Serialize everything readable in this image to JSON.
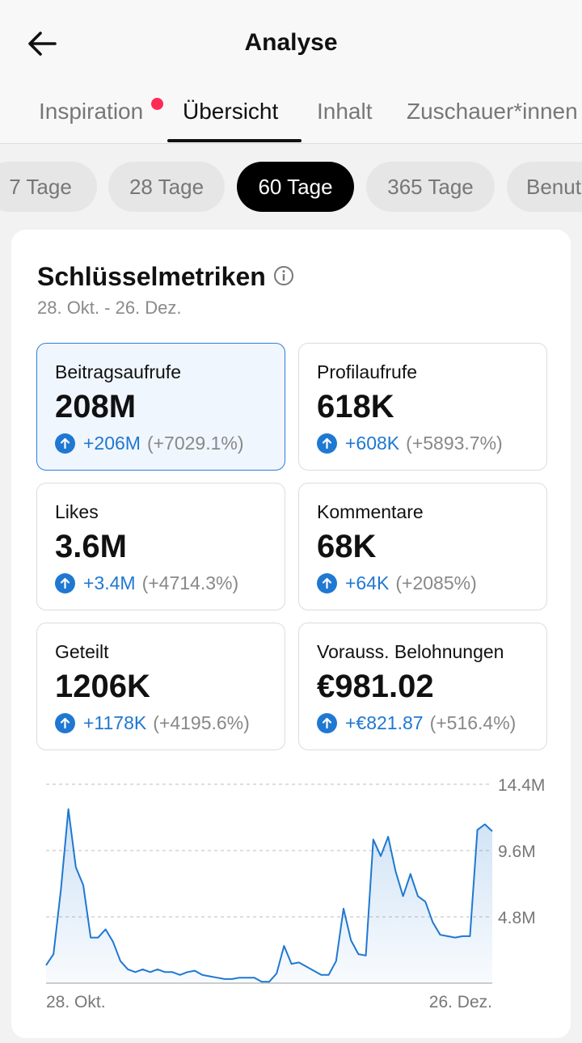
{
  "header": {
    "title": "Analyse"
  },
  "tabs": [
    {
      "label": "Inspiration",
      "has_notification_dot": true
    },
    {
      "label": "Übersicht",
      "active": true
    },
    {
      "label": "Inhalt"
    },
    {
      "label": "Zuschauer*innen"
    }
  ],
  "periods": [
    {
      "label": "7 Tage"
    },
    {
      "label": "28 Tage"
    },
    {
      "label": "60 Tage",
      "active": true
    },
    {
      "label": "365 Tage"
    },
    {
      "label": "Benutzerdefiniert"
    }
  ],
  "key_metrics": {
    "title": "Schlüsselmetriken",
    "date_range": "28. Okt. - 26. Dez.",
    "items": [
      {
        "label": "Beitragsaufrufe",
        "value": "208M",
        "delta": "+206M",
        "pct": "(+7029.1%)",
        "selected": true
      },
      {
        "label": "Profilaufrufe",
        "value": "618K",
        "delta": "+608K",
        "pct": "(+5893.7%)"
      },
      {
        "label": "Likes",
        "value": "3.6M",
        "delta": "+3.4M",
        "pct": "(+4714.3%)"
      },
      {
        "label": "Kommentare",
        "value": "68K",
        "delta": "+64K",
        "pct": "(+2085%)"
      },
      {
        "label": "Geteilt",
        "value": "1206K",
        "delta": "+1178K",
        "pct": "(+4195.6%)"
      },
      {
        "label": "Vorauss. Belohnungen",
        "value": "€981.02",
        "delta": "+€821.87",
        "pct": "(+516.4%)"
      }
    ]
  },
  "colors": {
    "accent": "#1f78d1",
    "active_chip": "#000000",
    "notification": "#fe2c55"
  },
  "chart_data": {
    "type": "area",
    "x_tick_labels": [
      "28. Okt.",
      "26. Dez."
    ],
    "y_tick_labels": [
      "14.4M",
      "9.6M",
      "4.8M"
    ],
    "ylim": [
      0,
      14.4
    ],
    "grid": true,
    "values": [
      1.3,
      2.1,
      6.8,
      12.6,
      8.4,
      7.1,
      3.3,
      3.3,
      3.9,
      3.0,
      1.6,
      1.0,
      0.8,
      1.0,
      0.8,
      1.0,
      0.8,
      0.8,
      0.6,
      0.8,
      0.9,
      0.6,
      0.5,
      0.4,
      0.3,
      0.3,
      0.4,
      0.4,
      0.4,
      0.1,
      0.1,
      0.7,
      2.7,
      1.4,
      1.5,
      1.2,
      0.9,
      0.6,
      0.6,
      1.6,
      5.4,
      3.1,
      2.1,
      2.0,
      10.4,
      9.2,
      10.6,
      8.1,
      6.3,
      7.9,
      6.3,
      5.9,
      4.4,
      3.5,
      3.4,
      3.3,
      3.4,
      3.4,
      11.1,
      11.5,
      11.0
    ]
  }
}
